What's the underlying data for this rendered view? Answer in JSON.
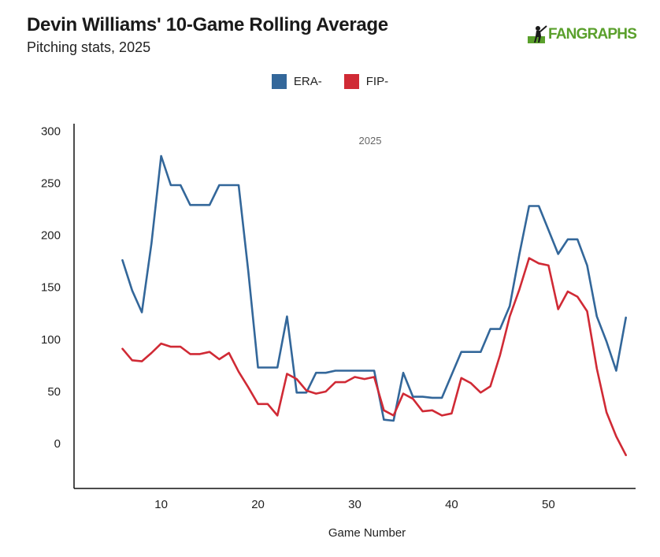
{
  "header": {
    "title": "Devin Williams' 10-Game Rolling Average",
    "subtitle": "Pitching stats, 2025",
    "logo_text": "FANGRAPHS"
  },
  "colors": {
    "era": "#33679a",
    "fip": "#d02a35",
    "logo": "#5aa02c"
  },
  "chart_data": {
    "type": "line",
    "xlabel": "Game Number",
    "ylabel": "",
    "annotation": "2025",
    "xlim": [
      1,
      59
    ],
    "ylim": [
      -43,
      307
    ],
    "xticks": [
      10,
      20,
      30,
      40,
      50
    ],
    "yticks": [
      0,
      50,
      100,
      150,
      200,
      250,
      300
    ],
    "grid": false,
    "legend": "top-center",
    "x": [
      6,
      7,
      8,
      9,
      10,
      11,
      12,
      13,
      14,
      15,
      16,
      17,
      18,
      19,
      20,
      21,
      22,
      23,
      24,
      25,
      26,
      27,
      28,
      29,
      30,
      31,
      32,
      33,
      34,
      35,
      36,
      37,
      38,
      39,
      40,
      41,
      42,
      43,
      44,
      45,
      46,
      47,
      48,
      49,
      50,
      51,
      52,
      53,
      54,
      55,
      56,
      57,
      58
    ],
    "series": [
      {
        "name": "ERA-",
        "color": "#33679a",
        "values": [
          176,
          147,
          126,
          192,
          276,
          248,
          248,
          229,
          229,
          229,
          248,
          248,
          248,
          165,
          73,
          73,
          73,
          122,
          49,
          49,
          68,
          68,
          70,
          70,
          70,
          70,
          70,
          23,
          22,
          68,
          45,
          45,
          44,
          44,
          66,
          88,
          88,
          88,
          110,
          110,
          132,
          182,
          228,
          228,
          205,
          182,
          196,
          196,
          171,
          122,
          98,
          70,
          121
        ]
      },
      {
        "name": "FIP-",
        "color": "#d02a35",
        "values": [
          91,
          80,
          79,
          87,
          96,
          93,
          93,
          86,
          86,
          88,
          81,
          87,
          69,
          54,
          38,
          38,
          27,
          67,
          62,
          51,
          48,
          50,
          59,
          59,
          64,
          62,
          64,
          32,
          27,
          48,
          43,
          31,
          32,
          27,
          29,
          63,
          58,
          49,
          55,
          85,
          122,
          148,
          178,
          173,
          171,
          129,
          146,
          141,
          127,
          72,
          30,
          7,
          -11
        ]
      }
    ]
  }
}
